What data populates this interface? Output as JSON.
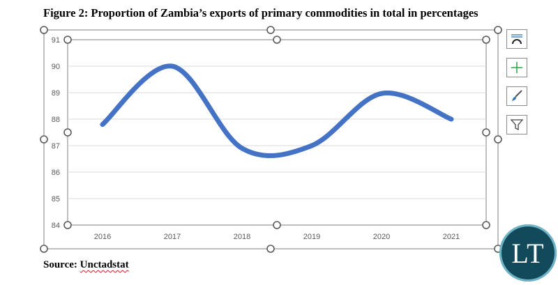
{
  "figure": {
    "title": "Figure 2: Proportion of Zambia’s exports of primary commodities in total in percentages",
    "source_label": "Source: ",
    "source_name": "Unctadstat"
  },
  "side_buttons": [
    {
      "name": "chart-elements-layout-icon"
    },
    {
      "name": "chart-elements-plus-icon"
    },
    {
      "name": "chart-styles-brush-icon"
    },
    {
      "name": "chart-filters-icon"
    }
  ],
  "logo": {
    "text": "LT"
  },
  "colors": {
    "line": "#4472c4",
    "grid": "#d9d9d9",
    "axis_text": "#595959",
    "handle": "#595959"
  },
  "chart_data": {
    "type": "line",
    "title": "",
    "xlabel": "",
    "ylabel": "",
    "categories": [
      "2016",
      "2017",
      "2018",
      "2019",
      "2020",
      "2021"
    ],
    "series": [
      {
        "values": [
          87.8,
          90.0,
          86.9,
          87.0,
          88.97,
          88.0
        ]
      }
    ],
    "ylim": [
      84,
      91
    ],
    "yticks": [
      84,
      85,
      86,
      87,
      88,
      89,
      90,
      91
    ],
    "grid": true,
    "smooth": true,
    "legend": "none"
  }
}
